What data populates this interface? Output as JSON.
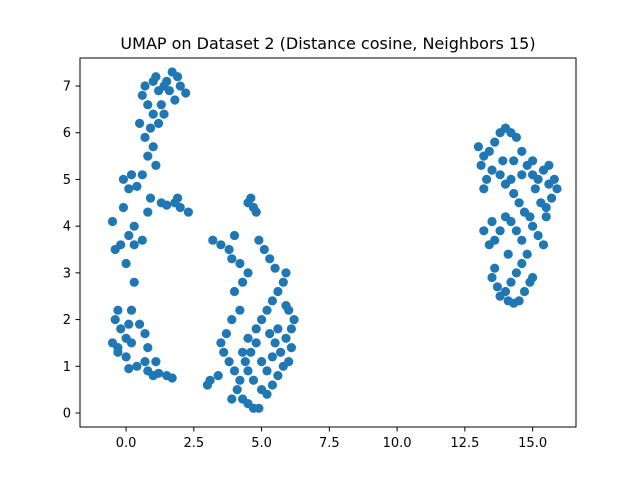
{
  "chart_data": {
    "type": "scatter",
    "title": "UMAP on Dataset 2 (Distance cosine, Neighbors 15)",
    "xlabel": "",
    "ylabel": "",
    "xlim": [
      -1.7,
      16.6
    ],
    "ylim": [
      -0.3,
      7.6
    ],
    "xticks": [
      0.0,
      2.5,
      5.0,
      7.5,
      10.0,
      12.5,
      15.0
    ],
    "xtick_labels": [
      "0.0",
      "2.5",
      "5.0",
      "7.5",
      "10.0",
      "12.5",
      "15.0"
    ],
    "yticks": [
      0,
      1,
      2,
      3,
      4,
      5,
      6,
      7
    ],
    "ytick_labels": [
      "0",
      "1",
      "2",
      "3",
      "4",
      "5",
      "6",
      "7"
    ],
    "grid": false,
    "marker_color": "#1f77b4",
    "series": [
      {
        "points": [
          [
            0.6,
            6.8
          ],
          [
            0.8,
            6.6
          ],
          [
            0.7,
            7.0
          ],
          [
            1.0,
            7.1
          ],
          [
            1.2,
            6.9
          ],
          [
            1.4,
            7.0
          ],
          [
            1.1,
            7.2
          ],
          [
            1.5,
            7.1
          ],
          [
            1.6,
            6.9
          ],
          [
            1.7,
            7.3
          ],
          [
            1.9,
            7.2
          ],
          [
            2.0,
            7.0
          ],
          [
            2.2,
            6.85
          ],
          [
            1.8,
            6.7
          ],
          [
            1.3,
            6.6
          ],
          [
            1.0,
            6.4
          ],
          [
            0.9,
            6.1
          ],
          [
            1.2,
            6.2
          ],
          [
            1.4,
            6.4
          ],
          [
            0.5,
            6.2
          ],
          [
            0.7,
            5.9
          ],
          [
            1.0,
            5.7
          ],
          [
            0.8,
            5.5
          ],
          [
            1.1,
            5.3
          ],
          [
            0.6,
            5.1
          ],
          [
            0.4,
            4.85
          ],
          [
            0.9,
            4.6
          ],
          [
            1.3,
            4.5
          ],
          [
            1.5,
            4.45
          ],
          [
            1.8,
            4.5
          ],
          [
            2.0,
            4.4
          ],
          [
            2.3,
            4.3
          ],
          [
            1.9,
            4.6
          ],
          [
            0.8,
            4.3
          ],
          [
            0.3,
            4.0
          ],
          [
            0.1,
            3.8
          ],
          [
            -0.2,
            3.6
          ],
          [
            -0.4,
            3.5
          ],
          [
            -0.5,
            4.1
          ],
          [
            -0.1,
            4.4
          ],
          [
            0.1,
            4.8
          ],
          [
            0.2,
            5.1
          ],
          [
            -0.1,
            5.0
          ],
          [
            0.3,
            3.6
          ],
          [
            0.6,
            3.7
          ],
          [
            0.0,
            3.2
          ],
          [
            0.3,
            2.8
          ],
          [
            -0.3,
            2.2
          ],
          [
            -0.4,
            2.0
          ],
          [
            -0.2,
            1.8
          ],
          [
            0.1,
            1.9
          ],
          [
            0.0,
            1.6
          ],
          [
            0.2,
            1.5
          ],
          [
            -0.3,
            1.4
          ],
          [
            -0.5,
            1.5
          ],
          [
            -0.3,
            1.3
          ],
          [
            0.0,
            1.2
          ],
          [
            0.1,
            0.95
          ],
          [
            0.4,
            1.0
          ],
          [
            0.7,
            1.1
          ],
          [
            0.8,
            0.9
          ],
          [
            1.0,
            0.8
          ],
          [
            1.2,
            0.85
          ],
          [
            1.5,
            0.8
          ],
          [
            1.7,
            0.75
          ],
          [
            1.1,
            1.1
          ],
          [
            0.8,
            1.4
          ],
          [
            0.7,
            1.7
          ],
          [
            0.5,
            1.9
          ],
          [
            0.2,
            2.2
          ]
        ]
      },
      {
        "points": [
          [
            3.2,
            3.7
          ],
          [
            3.5,
            3.6
          ],
          [
            3.8,
            3.5
          ],
          [
            3.9,
            3.3
          ],
          [
            4.2,
            3.2
          ],
          [
            4.5,
            3.0
          ],
          [
            4.3,
            2.8
          ],
          [
            4.0,
            2.6
          ],
          [
            4.2,
            2.2
          ],
          [
            3.9,
            2.0
          ],
          [
            3.7,
            1.7
          ],
          [
            3.5,
            1.5
          ],
          [
            3.6,
            1.3
          ],
          [
            3.8,
            1.1
          ],
          [
            4.0,
            0.9
          ],
          [
            4.2,
            0.7
          ],
          [
            4.1,
            0.5
          ],
          [
            4.3,
            0.3
          ],
          [
            4.5,
            0.2
          ],
          [
            4.7,
            0.1
          ],
          [
            4.9,
            0.1
          ],
          [
            4.3,
            1.3
          ],
          [
            4.5,
            1.6
          ],
          [
            4.8,
            1.8
          ],
          [
            5.0,
            2.0
          ],
          [
            5.2,
            2.2
          ],
          [
            5.4,
            2.4
          ],
          [
            5.6,
            2.6
          ],
          [
            5.8,
            2.8
          ],
          [
            5.9,
            3.0
          ],
          [
            5.5,
            3.1
          ],
          [
            5.3,
            3.3
          ],
          [
            5.1,
            3.5
          ],
          [
            4.9,
            3.7
          ],
          [
            4.7,
            4.4
          ],
          [
            4.6,
            4.6
          ],
          [
            4.5,
            4.5
          ],
          [
            4.8,
            4.3
          ],
          [
            5.3,
            1.7
          ],
          [
            5.5,
            1.5
          ],
          [
            5.7,
            1.3
          ],
          [
            5.9,
            1.6
          ],
          [
            6.1,
            1.8
          ],
          [
            6.2,
            2.0
          ],
          [
            6.0,
            2.2
          ],
          [
            5.8,
            1.0
          ],
          [
            5.6,
            0.8
          ],
          [
            5.4,
            0.6
          ],
          [
            5.2,
            0.4
          ],
          [
            5.0,
            0.5
          ],
          [
            4.7,
            0.7
          ],
          [
            4.5,
            0.9
          ],
          [
            4.4,
            1.1
          ],
          [
            4.6,
            1.3
          ],
          [
            4.8,
            1.5
          ],
          [
            5.0,
            1.1
          ],
          [
            5.2,
            0.9
          ],
          [
            5.4,
            1.2
          ],
          [
            5.6,
            1.8
          ],
          [
            5.9,
            2.3
          ],
          [
            6.1,
            1.4
          ],
          [
            6.0,
            1.1
          ],
          [
            3.0,
            0.6
          ],
          [
            3.1,
            0.7
          ],
          [
            3.4,
            0.8
          ],
          [
            4.0,
            3.8
          ],
          [
            3.9,
            0.3
          ]
        ]
      },
      {
        "points": [
          [
            13.0,
            5.7
          ],
          [
            13.2,
            5.5
          ],
          [
            13.4,
            5.6
          ],
          [
            13.6,
            5.8
          ],
          [
            13.8,
            6.0
          ],
          [
            14.0,
            6.1
          ],
          [
            14.2,
            6.0
          ],
          [
            14.4,
            5.9
          ],
          [
            14.6,
            5.6
          ],
          [
            14.8,
            5.3
          ],
          [
            15.0,
            5.1
          ],
          [
            15.2,
            5.0
          ],
          [
            15.4,
            5.2
          ],
          [
            15.6,
            5.3
          ],
          [
            15.8,
            5.0
          ],
          [
            15.9,
            4.8
          ],
          [
            15.7,
            4.6
          ],
          [
            15.5,
            4.4
          ],
          [
            15.3,
            4.5
          ],
          [
            15.1,
            4.8
          ],
          [
            13.1,
            5.3
          ],
          [
            13.3,
            5.0
          ],
          [
            13.2,
            4.8
          ],
          [
            13.5,
            5.2
          ],
          [
            13.8,
            5.1
          ],
          [
            14.0,
            4.9
          ],
          [
            14.3,
            4.7
          ],
          [
            14.5,
            4.5
          ],
          [
            14.7,
            4.3
          ],
          [
            14.9,
            4.2
          ],
          [
            15.0,
            4.0
          ],
          [
            15.2,
            3.8
          ],
          [
            15.4,
            3.6
          ],
          [
            15.5,
            4.2
          ],
          [
            14.6,
            3.7
          ],
          [
            14.4,
            3.9
          ],
          [
            14.2,
            4.1
          ],
          [
            14.0,
            4.2
          ],
          [
            13.8,
            3.9
          ],
          [
            13.6,
            3.7
          ],
          [
            13.4,
            3.6
          ],
          [
            13.2,
            3.9
          ],
          [
            13.5,
            4.1
          ],
          [
            14.8,
            3.4
          ],
          [
            14.6,
            3.2
          ],
          [
            14.4,
            3.0
          ],
          [
            14.2,
            2.8
          ],
          [
            14.0,
            2.6
          ],
          [
            13.8,
            2.5
          ],
          [
            14.1,
            2.4
          ],
          [
            14.3,
            2.35
          ],
          [
            14.5,
            2.4
          ],
          [
            14.7,
            2.6
          ],
          [
            14.9,
            2.8
          ],
          [
            13.6,
            3.1
          ],
          [
            13.5,
            2.9
          ],
          [
            13.7,
            2.7
          ],
          [
            15.0,
            2.9
          ],
          [
            14.1,
            3.4
          ],
          [
            14.3,
            5.4
          ],
          [
            14.6,
            5.1
          ],
          [
            15.0,
            5.4
          ],
          [
            15.6,
            4.9
          ],
          [
            13.9,
            5.4
          ],
          [
            14.2,
            5.0
          ]
        ]
      }
    ]
  }
}
